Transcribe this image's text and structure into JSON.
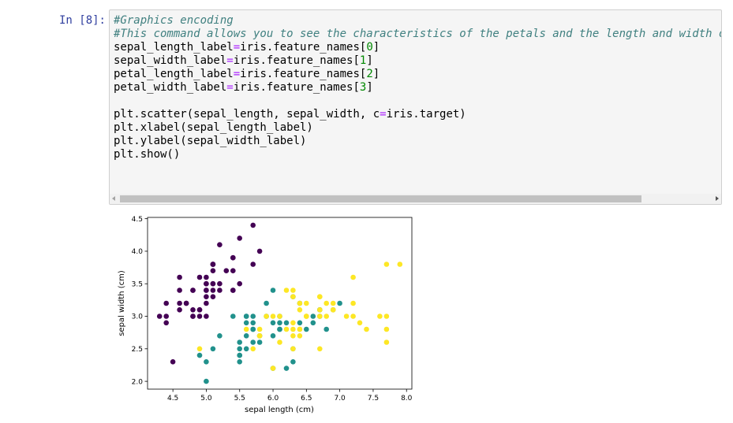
{
  "cell": {
    "prompt": "In [8]:",
    "code_lines": [
      "#Graphics encoding",
      "#This command allows you to see the characteristics of the petals and the length and width o",
      "sepal_length_label=iris.feature_names[0]",
      "sepal_width_label=iris.feature_names[1]",
      "petal_length_label=iris.feature_names[2]",
      "petal_width_label=iris.feature_names[3]",
      "",
      "plt.scatter(sepal_length, sepal_width, c=iris.target)",
      "plt.xlabel(sepal_length_label)",
      "plt.ylabel(sepal_width_label)",
      "plt.show()"
    ]
  },
  "chart_data": {
    "type": "scatter",
    "xlabel": "sepal length (cm)",
    "ylabel": "sepal width (cm)",
    "xlim": [
      4.12,
      8.08
    ],
    "ylim": [
      1.88,
      4.52
    ],
    "xticks": [
      "4.5",
      "5.0",
      "5.5",
      "6.0",
      "6.5",
      "7.0",
      "7.5",
      "8.0"
    ],
    "yticks": [
      "2.0",
      "2.5",
      "3.0",
      "3.5",
      "4.0",
      "4.5"
    ],
    "colors": [
      "#440154",
      "#21918c",
      "#fde725"
    ],
    "series": [
      {
        "values": [
          [
            5.1,
            3.5
          ],
          [
            4.9,
            3.0
          ],
          [
            4.7,
            3.2
          ],
          [
            4.6,
            3.1
          ],
          [
            5.0,
            3.6
          ],
          [
            5.4,
            3.9
          ],
          [
            4.6,
            3.4
          ],
          [
            5.0,
            3.4
          ],
          [
            4.4,
            2.9
          ],
          [
            4.9,
            3.1
          ],
          [
            5.4,
            3.7
          ],
          [
            4.8,
            3.4
          ],
          [
            4.8,
            3.0
          ],
          [
            4.3,
            3.0
          ],
          [
            5.8,
            4.0
          ],
          [
            5.7,
            4.4
          ],
          [
            5.4,
            3.9
          ],
          [
            5.1,
            3.5
          ],
          [
            5.7,
            3.8
          ],
          [
            5.1,
            3.8
          ],
          [
            5.4,
            3.4
          ],
          [
            5.1,
            3.7
          ],
          [
            4.6,
            3.6
          ],
          [
            5.1,
            3.3
          ],
          [
            4.8,
            3.4
          ],
          [
            5.0,
            3.0
          ],
          [
            5.0,
            3.4
          ],
          [
            5.2,
            3.5
          ],
          [
            5.2,
            3.4
          ],
          [
            4.7,
            3.2
          ],
          [
            4.8,
            3.1
          ],
          [
            5.4,
            3.4
          ],
          [
            5.2,
            4.1
          ],
          [
            5.5,
            4.2
          ],
          [
            4.9,
            3.1
          ],
          [
            5.0,
            3.2
          ],
          [
            5.5,
            3.5
          ],
          [
            4.9,
            3.6
          ],
          [
            4.4,
            3.0
          ],
          [
            5.1,
            3.4
          ],
          [
            5.0,
            3.5
          ],
          [
            4.5,
            2.3
          ],
          [
            4.4,
            3.2
          ],
          [
            5.0,
            3.5
          ],
          [
            5.1,
            3.8
          ],
          [
            4.8,
            3.0
          ],
          [
            5.1,
            3.8
          ],
          [
            4.6,
            3.2
          ],
          [
            5.3,
            3.7
          ],
          [
            5.0,
            3.3
          ]
        ]
      },
      {
        "values": [
          [
            7.0,
            3.2
          ],
          [
            6.4,
            3.2
          ],
          [
            6.9,
            3.1
          ],
          [
            5.5,
            2.3
          ],
          [
            6.5,
            2.8
          ],
          [
            5.7,
            2.8
          ],
          [
            6.3,
            3.3
          ],
          [
            4.9,
            2.4
          ],
          [
            6.6,
            2.9
          ],
          [
            5.2,
            2.7
          ],
          [
            5.0,
            2.0
          ],
          [
            5.9,
            3.0
          ],
          [
            6.0,
            2.2
          ],
          [
            6.1,
            2.9
          ],
          [
            5.6,
            2.9
          ],
          [
            6.7,
            3.1
          ],
          [
            5.6,
            3.0
          ],
          [
            5.8,
            2.7
          ],
          [
            6.2,
            2.2
          ],
          [
            5.6,
            2.5
          ],
          [
            5.9,
            3.2
          ],
          [
            6.1,
            2.8
          ],
          [
            6.3,
            2.5
          ],
          [
            6.1,
            2.8
          ],
          [
            6.4,
            2.9
          ],
          [
            6.6,
            3.0
          ],
          [
            6.8,
            2.8
          ],
          [
            6.7,
            3.0
          ],
          [
            6.0,
            2.9
          ],
          [
            5.7,
            2.6
          ],
          [
            5.5,
            2.4
          ],
          [
            5.5,
            2.4
          ],
          [
            5.8,
            2.7
          ],
          [
            6.0,
            2.7
          ],
          [
            5.4,
            3.0
          ],
          [
            6.0,
            3.4
          ],
          [
            6.7,
            3.1
          ],
          [
            6.3,
            2.3
          ],
          [
            5.6,
            3.0
          ],
          [
            5.5,
            2.5
          ],
          [
            5.5,
            2.6
          ],
          [
            6.1,
            3.0
          ],
          [
            5.8,
            2.6
          ],
          [
            5.0,
            2.3
          ],
          [
            5.6,
            2.7
          ],
          [
            5.7,
            3.0
          ],
          [
            5.7,
            2.9
          ],
          [
            6.2,
            2.9
          ],
          [
            5.1,
            2.5
          ],
          [
            5.7,
            2.8
          ]
        ]
      },
      {
        "values": [
          [
            6.3,
            3.3
          ],
          [
            5.8,
            2.7
          ],
          [
            7.1,
            3.0
          ],
          [
            6.3,
            2.9
          ],
          [
            6.5,
            3.0
          ],
          [
            7.6,
            3.0
          ],
          [
            4.9,
            2.5
          ],
          [
            7.3,
            2.9
          ],
          [
            6.7,
            2.5
          ],
          [
            7.2,
            3.6
          ],
          [
            6.5,
            3.2
          ],
          [
            6.4,
            2.7
          ],
          [
            6.8,
            3.0
          ],
          [
            5.7,
            2.5
          ],
          [
            5.8,
            2.8
          ],
          [
            6.4,
            3.2
          ],
          [
            6.5,
            3.0
          ],
          [
            7.7,
            3.8
          ],
          [
            7.7,
            2.6
          ],
          [
            6.0,
            2.2
          ],
          [
            6.9,
            3.2
          ],
          [
            5.6,
            2.8
          ],
          [
            7.7,
            2.8
          ],
          [
            6.3,
            2.7
          ],
          [
            6.7,
            3.3
          ],
          [
            7.2,
            3.2
          ],
          [
            6.2,
            2.8
          ],
          [
            6.1,
            3.0
          ],
          [
            6.4,
            2.8
          ],
          [
            7.2,
            3.0
          ],
          [
            7.4,
            2.8
          ],
          [
            7.9,
            3.8
          ],
          [
            6.4,
            2.8
          ],
          [
            6.3,
            2.8
          ],
          [
            6.1,
            2.6
          ],
          [
            7.7,
            3.0
          ],
          [
            6.3,
            3.4
          ],
          [
            6.4,
            3.1
          ],
          [
            6.0,
            3.0
          ],
          [
            6.9,
            3.1
          ],
          [
            6.7,
            3.1
          ],
          [
            6.9,
            3.1
          ],
          [
            5.8,
            2.7
          ],
          [
            6.8,
            3.2
          ],
          [
            6.7,
            3.3
          ],
          [
            6.7,
            3.0
          ],
          [
            6.3,
            2.5
          ],
          [
            6.5,
            3.0
          ],
          [
            6.2,
            3.4
          ],
          [
            5.9,
            3.0
          ]
        ]
      }
    ]
  }
}
